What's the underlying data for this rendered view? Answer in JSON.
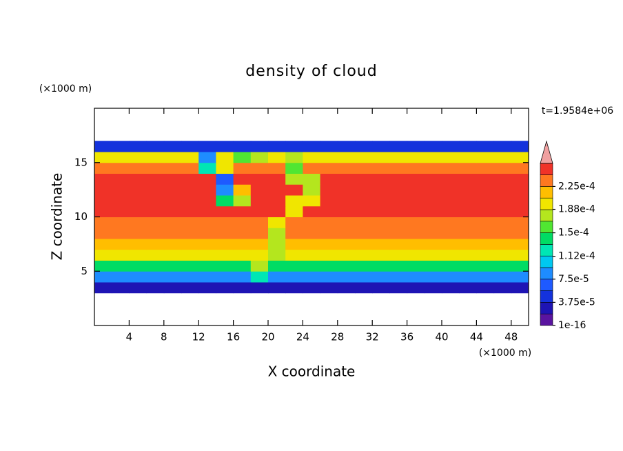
{
  "chart_data": {
    "type": "heatmap",
    "title": "density of cloud",
    "xlabel": "X coordinate",
    "ylabel": "Z coordinate",
    "x_unit": "(×1000 m)",
    "y_unit": "(×1000 m)",
    "time_label": "t=1.9584e+06",
    "xlim": [
      0,
      50
    ],
    "ylim": [
      0,
      20
    ],
    "xticks": [
      4,
      8,
      12,
      16,
      20,
      24,
      28,
      32,
      36,
      40,
      44,
      48
    ],
    "yticks": [
      5,
      10,
      15
    ],
    "x": [
      1,
      3,
      5,
      7,
      9,
      11,
      13,
      15,
      17,
      19,
      21,
      23,
      25,
      27,
      29,
      31,
      33,
      35,
      37,
      39,
      41,
      43,
      45,
      47,
      49
    ],
    "z": [
      3.5,
      4.5,
      5.5,
      6.5,
      7.5,
      8.5,
      9.5,
      10.5,
      11.5,
      12.5,
      13.5,
      14.5,
      15.5,
      16.5
    ],
    "cell_size": [
      2,
      1
    ],
    "values": [
      [
        2.5e-05,
        2.5e-05,
        2.5e-05,
        2.5e-05,
        2.5e-05,
        2.5e-05,
        2.5e-05,
        2.5e-05,
        2.5e-05,
        2.5e-05,
        2.5e-05,
        2.5e-05,
        2.5e-05,
        2.5e-05,
        2.5e-05,
        2.5e-05,
        2.5e-05,
        2.5e-05,
        2.5e-05,
        2.5e-05,
        2.5e-05,
        2.5e-05,
        2.5e-05,
        2.5e-05,
        2.5e-05
      ],
      [
        9e-05,
        9e-05,
        9e-05,
        9e-05,
        9e-05,
        9e-05,
        9e-05,
        9e-05,
        9e-05,
        0.00013,
        9e-05,
        9e-05,
        9e-05,
        9e-05,
        9e-05,
        9e-05,
        9e-05,
        9e-05,
        9e-05,
        9e-05,
        9e-05,
        9e-05,
        9e-05,
        9e-05,
        9e-05
      ],
      [
        0.00015,
        0.00015,
        0.00015,
        0.00015,
        0.00015,
        0.00015,
        0.00015,
        0.00015,
        0.00015,
        0.00017,
        0.00015,
        0.00015,
        0.00015,
        0.00015,
        0.00015,
        0.00015,
        0.00015,
        0.00015,
        0.00015,
        0.00015,
        0.00015,
        0.00015,
        0.00015,
        0.00015,
        0.00015
      ],
      [
        0.00019,
        0.00019,
        0.00019,
        0.00019,
        0.00019,
        0.00019,
        0.00019,
        0.00019,
        0.00019,
        0.00019,
        0.00017,
        0.00019,
        0.00019,
        0.00019,
        0.00019,
        0.00019,
        0.00019,
        0.00019,
        0.00019,
        0.00019,
        0.00019,
        0.00019,
        0.00019,
        0.00019,
        0.00019
      ],
      [
        0.000215,
        0.000215,
        0.000215,
        0.000215,
        0.000215,
        0.000215,
        0.000215,
        0.000215,
        0.000215,
        0.000215,
        0.00018,
        0.000215,
        0.000215,
        0.000215,
        0.000215,
        0.000215,
        0.000215,
        0.000215,
        0.000215,
        0.000215,
        0.000215,
        0.000215,
        0.000215,
        0.000215,
        0.000215
      ],
      [
        0.00023,
        0.00023,
        0.00023,
        0.00023,
        0.00023,
        0.00023,
        0.00023,
        0.00023,
        0.00023,
        0.00023,
        0.00018,
        0.00023,
        0.00023,
        0.00023,
        0.00023,
        0.00023,
        0.00023,
        0.00023,
        0.00023,
        0.00023,
        0.00023,
        0.00023,
        0.00023,
        0.00023,
        0.00023
      ],
      [
        0.00024,
        0.00024,
        0.00024,
        0.00024,
        0.00024,
        0.00024,
        0.00024,
        0.00024,
        0.00024,
        0.00024,
        0.0002,
        0.00024,
        0.00024,
        0.00024,
        0.00024,
        0.00024,
        0.00024,
        0.00024,
        0.00024,
        0.00024,
        0.00024,
        0.00024,
        0.00024,
        0.00024,
        0.00024
      ],
      [
        0.000245,
        0.000245,
        0.000245,
        0.000245,
        0.000245,
        0.000245,
        0.000245,
        0.000245,
        0.000245,
        0.000245,
        0.000245,
        0.0002,
        0.000245,
        0.000245,
        0.000245,
        0.000245,
        0.000245,
        0.000245,
        0.000245,
        0.000245,
        0.000245,
        0.000245,
        0.000245,
        0.000245,
        0.000245
      ],
      [
        0.00025,
        0.00025,
        0.00025,
        0.00025,
        0.00025,
        0.00025,
        0.00025,
        0.00015,
        0.00017,
        0.00025,
        0.00025,
        0.0002,
        0.00019,
        0.00025,
        0.00025,
        0.00025,
        0.00025,
        0.00025,
        0.00025,
        0.00025,
        0.00025,
        0.00025,
        0.00025,
        0.00025,
        0.00025
      ],
      [
        0.00025,
        0.00025,
        0.00025,
        0.00025,
        0.00025,
        0.00025,
        0.00025,
        9e-05,
        0.00021,
        0.00025,
        0.00025,
        0.00025,
        0.00018,
        0.00025,
        0.00025,
        0.00025,
        0.00025,
        0.00025,
        0.00025,
        0.00025,
        0.00025,
        0.00025,
        0.00025,
        0.00025,
        0.00025
      ],
      [
        0.00025,
        0.00025,
        0.00025,
        0.00025,
        0.00025,
        0.00025,
        0.00025,
        6e-05,
        0.00025,
        0.00025,
        0.00025,
        0.00018,
        0.00017,
        0.00025,
        0.00025,
        0.00025,
        0.00025,
        0.00025,
        0.00025,
        0.00025,
        0.00025,
        0.00025,
        0.00025,
        0.00025,
        0.00025
      ],
      [
        0.00024,
        0.00024,
        0.00024,
        0.00024,
        0.00024,
        0.00024,
        0.00012,
        0.0002,
        0.00024,
        0.00024,
        0.00024,
        0.00016,
        0.00024,
        0.00024,
        0.00024,
        0.00024,
        0.00024,
        0.00024,
        0.00024,
        0.00024,
        0.00024,
        0.00024,
        0.00024,
        0.00024,
        0.00024
      ],
      [
        0.0002,
        0.0002,
        0.0002,
        0.0002,
        0.0002,
        0.0002,
        8e-05,
        0.0002,
        0.00016,
        0.00017,
        0.0002,
        0.00018,
        0.0002,
        0.0002,
        0.0002,
        0.0002,
        0.0002,
        0.0002,
        0.0002,
        0.0002,
        0.0002,
        0.0002,
        0.0002,
        0.0002,
        0.0002
      ],
      [
        5e-05,
        5e-05,
        5e-05,
        5e-05,
        5e-05,
        5e-05,
        5e-05,
        5e-05,
        5e-05,
        5e-05,
        5e-05,
        5e-05,
        5e-05,
        5e-05,
        5e-05,
        5e-05,
        5e-05,
        5e-05,
        5e-05,
        5e-05,
        5e-05,
        5e-05,
        5e-05,
        5e-05,
        5e-05
      ]
    ],
    "clim": [
      1e-16,
      0.0002625
    ],
    "colors": [
      "#5a14a0",
      "#1e14b4",
      "#1432dc",
      "#1e5aff",
      "#1e8cff",
      "#00c8f0",
      "#00e6b4",
      "#00dc64",
      "#50e632",
      "#b4e61e",
      "#f0e600",
      "#ffbe00",
      "#ff7820",
      "#f03228"
    ],
    "over_color": "#f0a0a0",
    "cticks": [
      {
        "value": 1e-16,
        "label": "1e-16"
      },
      {
        "value": 3.75e-05,
        "label": "3.75e-5"
      },
      {
        "value": 7.5e-05,
        "label": "7.5e-5"
      },
      {
        "value": 0.000112,
        "label": "1.12e-4"
      },
      {
        "value": 0.00015,
        "label": "1.5e-4"
      },
      {
        "value": 0.000188,
        "label": "1.88e-4"
      },
      {
        "value": 0.000225,
        "label": "2.25e-4"
      }
    ]
  }
}
